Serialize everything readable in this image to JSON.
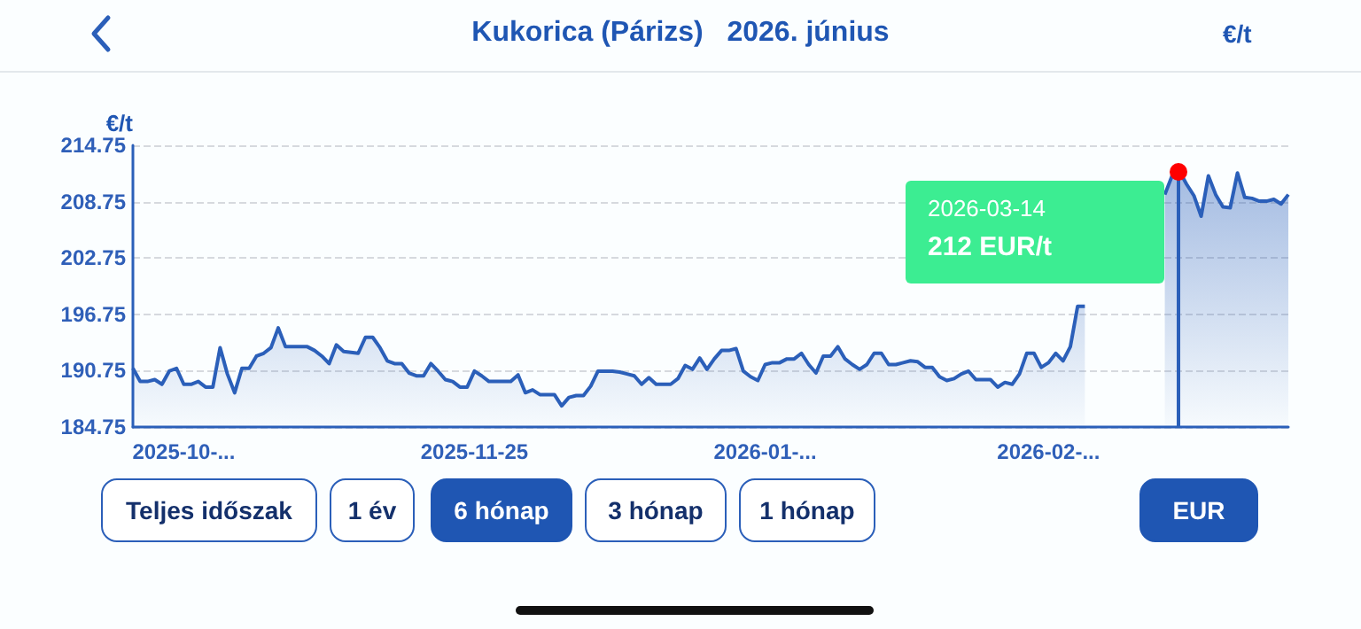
{
  "chart_data": {
    "type": "area",
    "title": "Kukorica (Párizs)   2026. június",
    "ylabel": "€/t",
    "categories": [
      null,
      null,
      null,
      null,
      null,
      null,
      null,
      "2025-10-...",
      null,
      null,
      null,
      null,
      null,
      null,
      null,
      null,
      null,
      null,
      null,
      null,
      null,
      null,
      null,
      null,
      null,
      null,
      null,
      null,
      null,
      null,
      null,
      null,
      null,
      null,
      null,
      null,
      null,
      null,
      null,
      null,
      null,
      null,
      null,
      null,
      null,
      null,
      null,
      "2025-11-25",
      null,
      null,
      null,
      null,
      null,
      null,
      null,
      null,
      null,
      null,
      null,
      null,
      null,
      null,
      null,
      null,
      null,
      null,
      null,
      null,
      null,
      null,
      null,
      null,
      null,
      null,
      null,
      null,
      null,
      null,
      null,
      null,
      null,
      null,
      null,
      null,
      null,
      null,
      null,
      "2026-01-...",
      null,
      null,
      null,
      null,
      null,
      null,
      null,
      null,
      null,
      null,
      null,
      null,
      null,
      null,
      null,
      null,
      null,
      null,
      null,
      null,
      null,
      null,
      null,
      null,
      null,
      null,
      null,
      null,
      null,
      null,
      null,
      null,
      null,
      null,
      null,
      null,
      null,
      null,
      "2026-02-...",
      null,
      null,
      null,
      null,
      null,
      null,
      null,
      null,
      null,
      null,
      null,
      null,
      null,
      null,
      null,
      null,
      null,
      null,
      null,
      null,
      null,
      null,
      null,
      null,
      null,
      null,
      null,
      null,
      null,
      null,
      null,
      null,
      null
    ],
    "series": [
      {
        "color": "#2b5fb9",
        "values": [
          191.0,
          189.6,
          189.6,
          189.8,
          189.3,
          190.7,
          191.0,
          189.3,
          189.3,
          189.6,
          189.0,
          189.0,
          193.2,
          190.4,
          188.4,
          191.0,
          191.0,
          192.3,
          192.6,
          193.2,
          195.3,
          193.3,
          193.3,
          193.3,
          193.3,
          192.9,
          192.3,
          191.5,
          193.5,
          192.8,
          192.7,
          192.6,
          194.3,
          194.3,
          193.2,
          191.8,
          191.5,
          191.5,
          190.5,
          190.2,
          190.2,
          191.5,
          190.7,
          189.8,
          189.6,
          189.0,
          189.0,
          190.7,
          190.2,
          189.6,
          189.6,
          189.6,
          189.6,
          190.3,
          188.4,
          188.7,
          188.2,
          188.2,
          188.2,
          187.0,
          187.9,
          188.1,
          188.1,
          189.1,
          190.7,
          190.7,
          190.7,
          190.6,
          190.4,
          190.2,
          189.3,
          190.0,
          189.3,
          189.3,
          189.3,
          189.9,
          191.3,
          190.9,
          192.1,
          190.9,
          192.0,
          192.9,
          192.9,
          193.1,
          190.7,
          190.1,
          189.7,
          191.4,
          191.6,
          191.6,
          192.0,
          192.0,
          192.6,
          191.4,
          190.5,
          192.3,
          192.3,
          193.3,
          192.0,
          191.4,
          190.9,
          191.4,
          192.6,
          192.6,
          191.4,
          191.4,
          191.6,
          191.8,
          191.7,
          191.1,
          191.1,
          190.1,
          189.7,
          189.9,
          190.4,
          190.7,
          189.8,
          189.8,
          189.8,
          189.0,
          189.5,
          189.3,
          190.4,
          192.6,
          192.6,
          191.1,
          191.6,
          192.6,
          191.8,
          193.3,
          197.6,
          197.6,
          null,
          null,
          null,
          null,
          null,
          null,
          null,
          null,
          null,
          null,
          209.5,
          211.5,
          212,
          210.6,
          209.4,
          207.2,
          211.5,
          209.5,
          208.2,
          208.1,
          211.8,
          209.2,
          209.1,
          208.8,
          208.8,
          209.0,
          208.5,
          209.5
        ]
      }
    ],
    "ylim": [
      184.75,
      214.75
    ],
    "yticks": [
      184.75,
      190.75,
      196.75,
      202.75,
      208.75,
      214.75
    ],
    "grid": "y",
    "marker": "none",
    "annotations": [
      "€/t",
      "Teljes időszak",
      "1 év",
      "6 hónap",
      "3 hónap",
      "1 hónap",
      "EUR",
      "2026-03-14",
      "212 EUR/t"
    ]
  }
}
